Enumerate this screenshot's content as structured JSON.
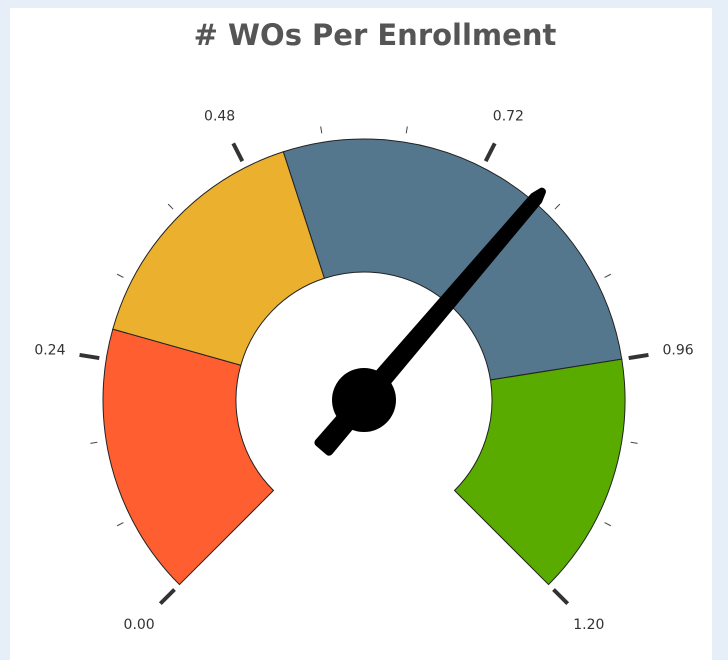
{
  "chart_data": {
    "type": "gauge",
    "title": "# WOs Per Enrollment",
    "range": [
      0,
      1.2
    ],
    "ticks": [
      {
        "value": 0,
        "label": "0.00"
      },
      {
        "value": 0.24,
        "label": "0.24"
      },
      {
        "value": 0.48,
        "label": "0.48"
      },
      {
        "value": 0.72,
        "label": "0.72"
      },
      {
        "value": 0.96,
        "label": "0.96"
      },
      {
        "value": 1.2,
        "label": "1.20"
      }
    ],
    "minor_ticks": [
      0.08,
      0.16,
      0.32,
      0.4,
      0.56,
      0.64,
      0.8,
      0.88,
      1.04,
      1.12
    ],
    "bands": [
      {
        "from": 0,
        "to": 0.27,
        "color": "#ff5f30"
      },
      {
        "from": 0.27,
        "to": 0.52,
        "color": "#ebb02e"
      },
      {
        "from": 0.52,
        "to": 0.96,
        "color": "#54778d"
      },
      {
        "from": 0.96,
        "to": 1.2,
        "color": "#5aab00"
      }
    ],
    "value": 0.78,
    "needle_color": "#000000"
  }
}
